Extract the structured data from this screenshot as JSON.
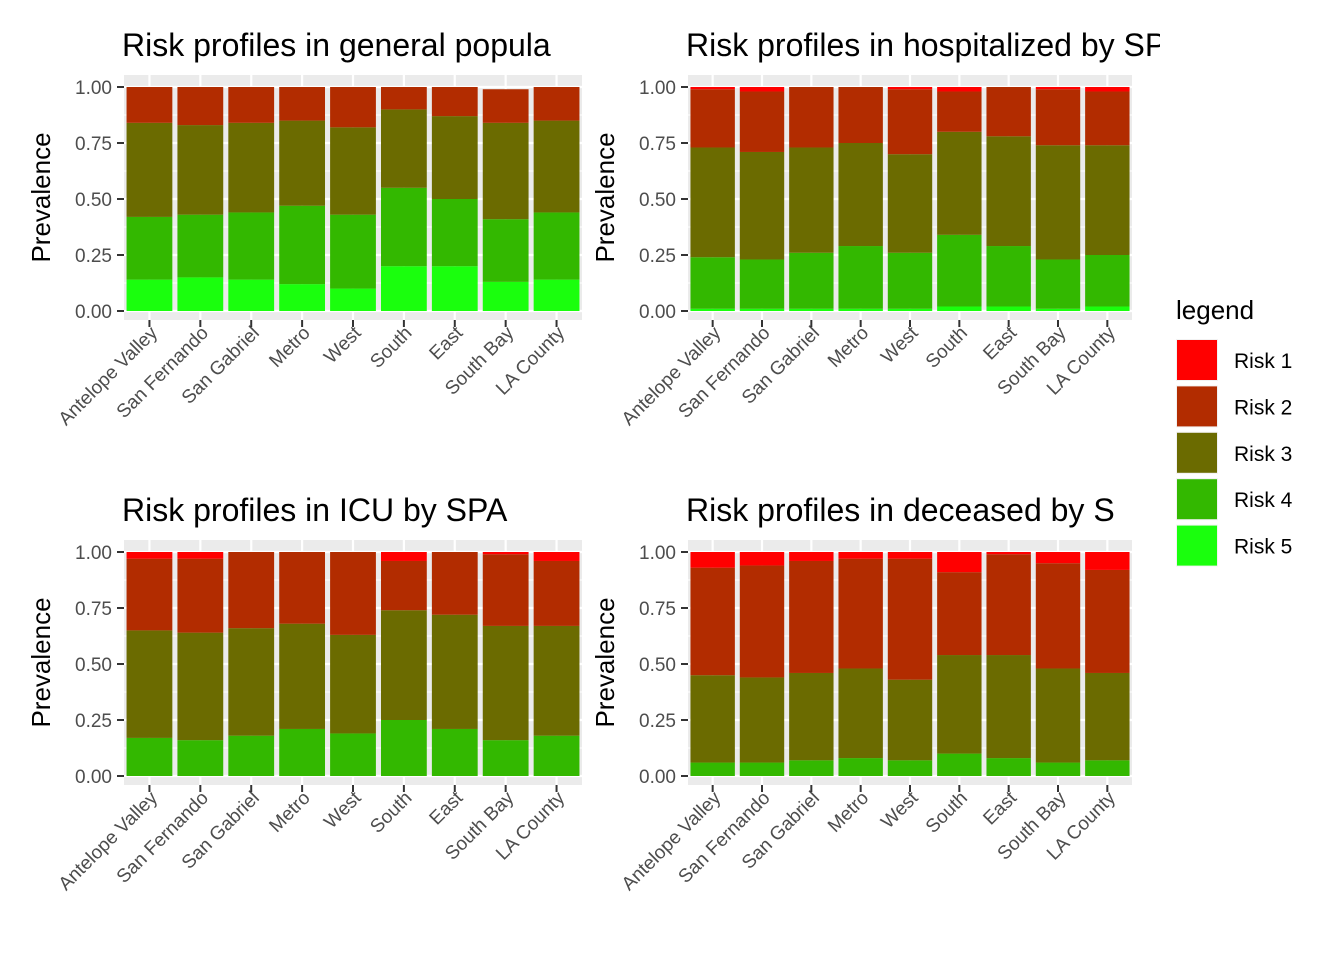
{
  "categories": [
    "Antelope Valley",
    "San Fernando",
    "San Gabriel",
    "Metro",
    "West",
    "South",
    "East",
    "South Bay",
    "LA County"
  ],
  "ylabel": "Prevalence",
  "yticks": [
    "0.00",
    "0.25",
    "0.50",
    "0.75",
    "1.00"
  ],
  "legend": {
    "title": "legend",
    "items": [
      {
        "label": "Risk 1",
        "color": "#FF0000"
      },
      {
        "label": "Risk 2",
        "color": "#B22C00"
      },
      {
        "label": "Risk 3",
        "color": "#6B6B00"
      },
      {
        "label": "Risk 4",
        "color": "#33B800"
      },
      {
        "label": "Risk 5",
        "color": "#1AFF0D"
      }
    ]
  },
  "chart_data": [
    {
      "type": "bar",
      "stacked": true,
      "title": "Risk profiles in general popula",
      "ylabel": "Prevalence",
      "ylim": [
        0,
        1
      ],
      "categories": [
        "Antelope Valley",
        "San Fernando",
        "San Gabriel",
        "Metro",
        "West",
        "South",
        "East",
        "South Bay",
        "LA County"
      ],
      "series": [
        {
          "name": "Risk 5",
          "values": [
            0.14,
            0.15,
            0.14,
            0.12,
            0.1,
            0.2,
            0.2,
            0.13,
            0.14
          ]
        },
        {
          "name": "Risk 4",
          "values": [
            0.28,
            0.28,
            0.3,
            0.35,
            0.33,
            0.35,
            0.3,
            0.28,
            0.3
          ]
        },
        {
          "name": "Risk 3",
          "values": [
            0.42,
            0.4,
            0.4,
            0.38,
            0.39,
            0.35,
            0.37,
            0.43,
            0.41
          ]
        },
        {
          "name": "Risk 2",
          "values": [
            0.16,
            0.17,
            0.16,
            0.15,
            0.18,
            0.1,
            0.13,
            0.15,
            0.15
          ]
        },
        {
          "name": "Risk 1",
          "values": [
            0.0,
            0.0,
            0.0,
            0.0,
            0.0,
            0.0,
            0.0,
            0.0,
            0.0
          ]
        }
      ]
    },
    {
      "type": "bar",
      "stacked": true,
      "title": "Risk profiles in hospitalized by SPA",
      "ylabel": "Prevalence",
      "ylim": [
        0,
        1
      ],
      "categories": [
        "Antelope Valley",
        "San Fernando",
        "San Gabriel",
        "Metro",
        "West",
        "South",
        "East",
        "South Bay",
        "LA County"
      ],
      "series": [
        {
          "name": "Risk 5",
          "values": [
            0.01,
            0.01,
            0.01,
            0.01,
            0.01,
            0.02,
            0.02,
            0.01,
            0.02
          ]
        },
        {
          "name": "Risk 4",
          "values": [
            0.23,
            0.22,
            0.25,
            0.28,
            0.25,
            0.32,
            0.27,
            0.22,
            0.23
          ]
        },
        {
          "name": "Risk 3",
          "values": [
            0.49,
            0.48,
            0.47,
            0.46,
            0.44,
            0.46,
            0.49,
            0.51,
            0.49
          ]
        },
        {
          "name": "Risk 2",
          "values": [
            0.26,
            0.27,
            0.27,
            0.25,
            0.29,
            0.18,
            0.22,
            0.25,
            0.24
          ]
        },
        {
          "name": "Risk 1",
          "values": [
            0.01,
            0.02,
            0.0,
            0.0,
            0.01,
            0.02,
            0.0,
            0.01,
            0.02
          ]
        }
      ]
    },
    {
      "type": "bar",
      "stacked": true,
      "title": "Risk profiles in ICU by SPA",
      "ylabel": "Prevalence",
      "ylim": [
        0,
        1
      ],
      "categories": [
        "Antelope Valley",
        "San Fernando",
        "San Gabriel",
        "Metro",
        "West",
        "South",
        "East",
        "South Bay",
        "LA County"
      ],
      "series": [
        {
          "name": "Risk 5",
          "values": [
            0.0,
            0.0,
            0.0,
            0.0,
            0.0,
            0.0,
            0.0,
            0.0,
            0.0
          ]
        },
        {
          "name": "Risk 4",
          "values": [
            0.17,
            0.16,
            0.18,
            0.21,
            0.19,
            0.25,
            0.21,
            0.16,
            0.18
          ]
        },
        {
          "name": "Risk 3",
          "values": [
            0.48,
            0.48,
            0.48,
            0.47,
            0.44,
            0.49,
            0.51,
            0.51,
            0.49
          ]
        },
        {
          "name": "Risk 2",
          "values": [
            0.32,
            0.33,
            0.34,
            0.32,
            0.37,
            0.22,
            0.28,
            0.32,
            0.29
          ]
        },
        {
          "name": "Risk 1",
          "values": [
            0.03,
            0.03,
            0.0,
            0.0,
            0.0,
            0.04,
            0.0,
            0.01,
            0.04
          ]
        }
      ]
    },
    {
      "type": "bar",
      "stacked": true,
      "title": "Risk profiles in deceased by S",
      "ylabel": "Prevalence",
      "ylim": [
        0,
        1
      ],
      "categories": [
        "Antelope Valley",
        "San Fernando",
        "San Gabriel",
        "Metro",
        "West",
        "South",
        "East",
        "South Bay",
        "LA County"
      ],
      "series": [
        {
          "name": "Risk 5",
          "values": [
            0.0,
            0.0,
            0.0,
            0.0,
            0.0,
            0.0,
            0.0,
            0.0,
            0.0
          ]
        },
        {
          "name": "Risk 4",
          "values": [
            0.06,
            0.06,
            0.07,
            0.08,
            0.07,
            0.1,
            0.08,
            0.06,
            0.07
          ]
        },
        {
          "name": "Risk 3",
          "values": [
            0.39,
            0.38,
            0.39,
            0.4,
            0.36,
            0.44,
            0.46,
            0.42,
            0.39
          ]
        },
        {
          "name": "Risk 2",
          "values": [
            0.48,
            0.5,
            0.5,
            0.49,
            0.54,
            0.37,
            0.45,
            0.47,
            0.46
          ]
        },
        {
          "name": "Risk 1",
          "values": [
            0.07,
            0.06,
            0.04,
            0.03,
            0.03,
            0.09,
            0.01,
            0.05,
            0.08
          ]
        }
      ]
    }
  ]
}
